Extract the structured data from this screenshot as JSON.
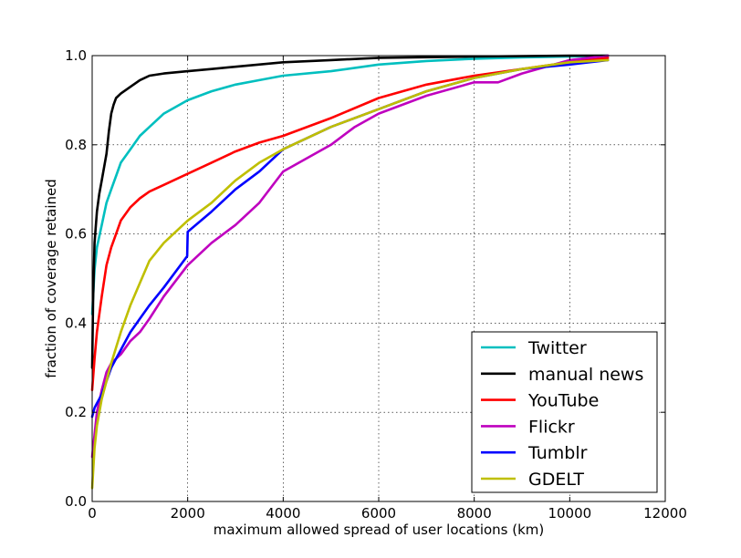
{
  "chart_data": {
    "type": "line",
    "xlabel": "maximum allowed spread of user locations (km)",
    "ylabel": "fraction of coverage retained",
    "xlim": [
      0,
      12000
    ],
    "ylim": [
      0.0,
      1.0
    ],
    "xticks": [
      0,
      2000,
      4000,
      6000,
      8000,
      10000,
      12000
    ],
    "xtick_labels": [
      "0",
      "2000",
      "4000",
      "6000",
      "8000",
      "10000",
      "12000"
    ],
    "yticks": [
      0.0,
      0.2,
      0.4,
      0.6,
      0.8,
      1.0
    ],
    "ytick_labels": [
      "0.0",
      "0.2",
      "0.4",
      "0.6",
      "0.8",
      "1.0"
    ],
    "grid": true,
    "legend_position": "lower-right",
    "series": [
      {
        "name": "Twitter",
        "color": "#00bfbf",
        "x": [
          0,
          50,
          100,
          200,
          300,
          400,
          500,
          600,
          800,
          1000,
          1200,
          1500,
          2000,
          2500,
          3000,
          3500,
          4000,
          5000,
          6000,
          7000,
          8000,
          9000,
          10000,
          10800
        ],
        "y": [
          0.42,
          0.52,
          0.57,
          0.62,
          0.67,
          0.7,
          0.73,
          0.76,
          0.79,
          0.82,
          0.84,
          0.87,
          0.9,
          0.92,
          0.935,
          0.945,
          0.955,
          0.965,
          0.98,
          0.988,
          0.993,
          0.996,
          0.998,
          1.0
        ]
      },
      {
        "name": "manual news",
        "color": "#000000",
        "x": [
          0,
          20,
          50,
          100,
          150,
          200,
          300,
          350,
          400,
          450,
          500,
          600,
          800,
          1000,
          1200,
          1500,
          2000,
          2500,
          3000,
          4000,
          5000,
          6000,
          8000,
          10000,
          10800
        ],
        "y": [
          0.3,
          0.45,
          0.58,
          0.65,
          0.69,
          0.72,
          0.78,
          0.83,
          0.87,
          0.89,
          0.905,
          0.915,
          0.93,
          0.945,
          0.955,
          0.96,
          0.965,
          0.97,
          0.975,
          0.985,
          0.99,
          0.995,
          0.998,
          1.0,
          1.0
        ]
      },
      {
        "name": "YouTube",
        "color": "#ff0000",
        "x": [
          0,
          50,
          100,
          200,
          300,
          400,
          500,
          600,
          800,
          1000,
          1200,
          1500,
          2000,
          2500,
          3000,
          3500,
          4000,
          5000,
          6000,
          7000,
          8000,
          9000,
          10000,
          10800
        ],
        "y": [
          0.25,
          0.32,
          0.38,
          0.46,
          0.53,
          0.57,
          0.6,
          0.63,
          0.66,
          0.68,
          0.695,
          0.71,
          0.735,
          0.76,
          0.785,
          0.805,
          0.82,
          0.86,
          0.905,
          0.935,
          0.955,
          0.97,
          0.985,
          0.995
        ]
      },
      {
        "name": "Flickr",
        "color": "#bf00bf",
        "x": [
          0,
          50,
          100,
          200,
          300,
          400,
          600,
          800,
          1000,
          1200,
          1500,
          2000,
          2500,
          3000,
          3500,
          4000,
          5000,
          5500,
          6000,
          7000,
          8000,
          8500,
          9000,
          9500,
          10000,
          10800
        ],
        "y": [
          0.1,
          0.15,
          0.2,
          0.25,
          0.29,
          0.31,
          0.33,
          0.36,
          0.38,
          0.41,
          0.46,
          0.53,
          0.58,
          0.62,
          0.67,
          0.74,
          0.8,
          0.84,
          0.87,
          0.91,
          0.94,
          0.94,
          0.96,
          0.975,
          0.99,
          1.0
        ]
      },
      {
        "name": "Tumblr",
        "color": "#0000ff",
        "x": [
          0,
          50,
          100,
          200,
          300,
          400,
          600,
          800,
          1000,
          1200,
          1500,
          1990,
          2000,
          2500,
          3000,
          3500,
          4000,
          5000,
          6000,
          7000,
          8000,
          9000,
          10000,
          10800
        ],
        "y": [
          0.19,
          0.21,
          0.22,
          0.24,
          0.27,
          0.3,
          0.34,
          0.38,
          0.41,
          0.44,
          0.48,
          0.55,
          0.605,
          0.65,
          0.7,
          0.74,
          0.79,
          0.84,
          0.88,
          0.92,
          0.95,
          0.97,
          0.98,
          0.99
        ]
      },
      {
        "name": "GDELT",
        "color": "#bfbf00",
        "x": [
          0,
          50,
          100,
          200,
          300,
          400,
          600,
          800,
          1000,
          1200,
          1500,
          2000,
          2500,
          3000,
          3500,
          4000,
          5000,
          6000,
          7000,
          8000,
          9000,
          10000,
          10800
        ],
        "y": [
          0.03,
          0.12,
          0.17,
          0.23,
          0.27,
          0.31,
          0.38,
          0.44,
          0.49,
          0.54,
          0.58,
          0.63,
          0.67,
          0.72,
          0.76,
          0.79,
          0.84,
          0.88,
          0.92,
          0.95,
          0.97,
          0.985,
          0.99
        ]
      }
    ]
  }
}
